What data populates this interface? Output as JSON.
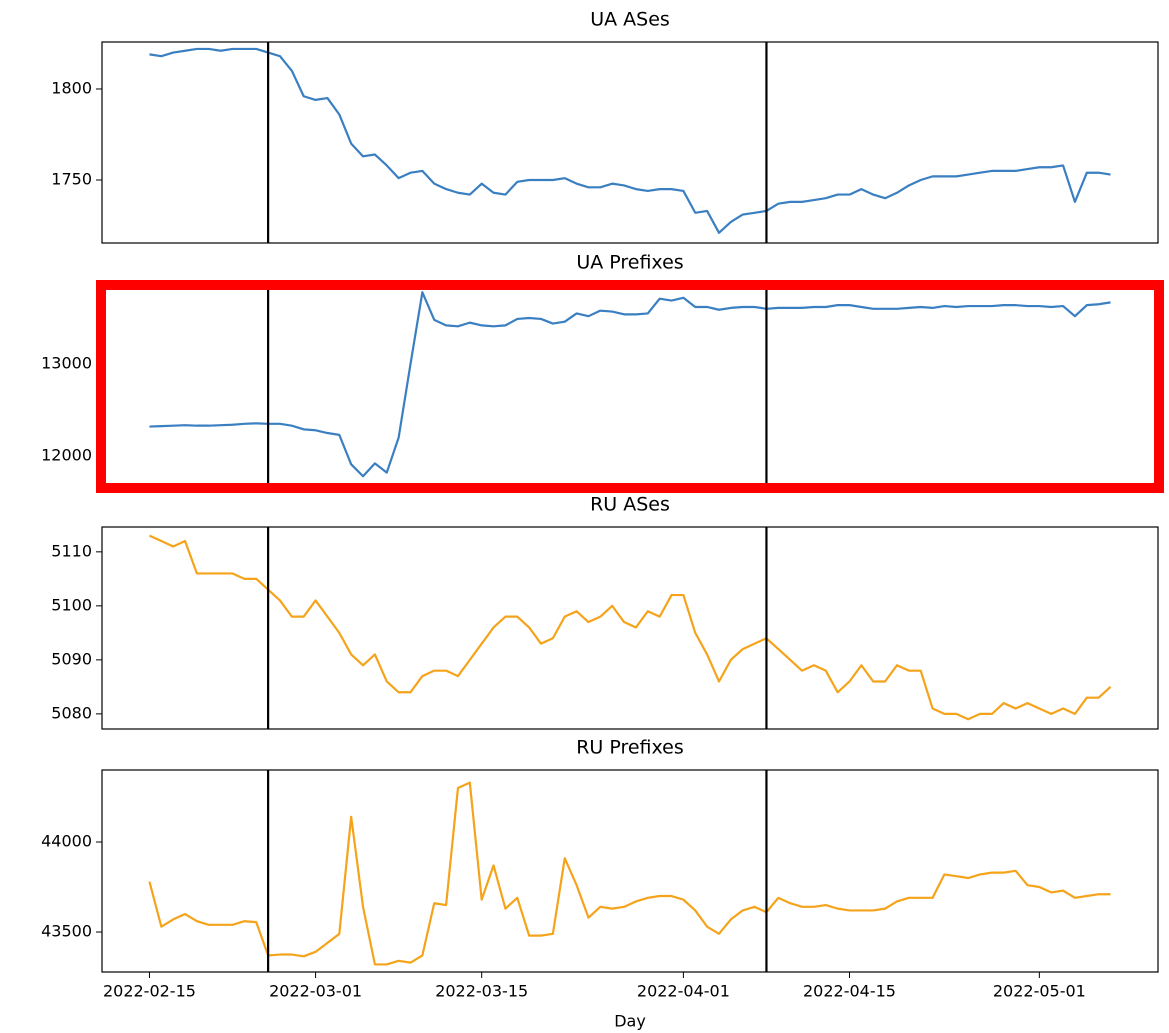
{
  "chart_data": [
    {
      "type": "line",
      "title": "UA ASes",
      "x": [
        "2022-02-15",
        "2022-02-16",
        "2022-02-17",
        "2022-02-18",
        "2022-02-19",
        "2022-02-20",
        "2022-02-21",
        "2022-02-22",
        "2022-02-23",
        "2022-02-24",
        "2022-02-25",
        "2022-02-26",
        "2022-02-27",
        "2022-02-28",
        "2022-03-01",
        "2022-03-02",
        "2022-03-03",
        "2022-03-04",
        "2022-03-05",
        "2022-03-06",
        "2022-03-07",
        "2022-03-08",
        "2022-03-09",
        "2022-03-10",
        "2022-03-11",
        "2022-03-12",
        "2022-03-13",
        "2022-03-14",
        "2022-03-15",
        "2022-03-16",
        "2022-03-17",
        "2022-03-18",
        "2022-03-19",
        "2022-03-20",
        "2022-03-21",
        "2022-03-22",
        "2022-03-23",
        "2022-03-24",
        "2022-03-25",
        "2022-03-26",
        "2022-03-27",
        "2022-03-28",
        "2022-03-29",
        "2022-03-30",
        "2022-03-31",
        "2022-04-01",
        "2022-04-02",
        "2022-04-03",
        "2022-04-04",
        "2022-04-05",
        "2022-04-06",
        "2022-04-07",
        "2022-04-08",
        "2022-04-09",
        "2022-04-10",
        "2022-04-11",
        "2022-04-12",
        "2022-04-13",
        "2022-04-14",
        "2022-04-15",
        "2022-04-16",
        "2022-04-17",
        "2022-04-18",
        "2022-04-19",
        "2022-04-20",
        "2022-04-21",
        "2022-04-22",
        "2022-04-23",
        "2022-04-24",
        "2022-04-25",
        "2022-04-26",
        "2022-04-27",
        "2022-04-28",
        "2022-04-29",
        "2022-04-30",
        "2022-05-01",
        "2022-05-02",
        "2022-05-03",
        "2022-05-04",
        "2022-05-05",
        "2022-05-06",
        "2022-05-07"
      ],
      "values": [
        1819,
        1818,
        1820,
        1821,
        1822,
        1822,
        1821,
        1822,
        1822,
        1822,
        1820,
        1818,
        1810,
        1796,
        1794,
        1795,
        1786,
        1770,
        1763,
        1764,
        1758,
        1751,
        1754,
        1755,
        1748,
        1745,
        1743,
        1742,
        1748,
        1743,
        1742,
        1749,
        1750,
        1750,
        1750,
        1751,
        1748,
        1746,
        1746,
        1748,
        1747,
        1745,
        1744,
        1745,
        1745,
        1744,
        1732,
        1733,
        1721,
        1727,
        1731,
        1732,
        1733,
        1737,
        1738,
        1738,
        1739,
        1740,
        1742,
        1742,
        1745,
        1742,
        1740,
        1743,
        1747,
        1750,
        1752,
        1752,
        1752,
        1753,
        1754,
        1755,
        1755,
        1755,
        1756,
        1757,
        1757,
        1758,
        1738,
        1754,
        1754,
        1753
      ],
      "color": "#3a7fc1",
      "xlim": [
        "2022-02-11",
        "2022-05-11"
      ],
      "ylim": [
        1715.4,
        1825.8
      ],
      "yticks": [
        1750,
        1800
      ],
      "vlines": [
        "2022-02-25",
        "2022-04-08"
      ],
      "vline_color": "#000000"
    },
    {
      "type": "line",
      "title": "UA Prefixes",
      "x": [
        "2022-02-15",
        "2022-02-16",
        "2022-02-17",
        "2022-02-18",
        "2022-02-19",
        "2022-02-20",
        "2022-02-21",
        "2022-02-22",
        "2022-02-23",
        "2022-02-24",
        "2022-02-25",
        "2022-02-26",
        "2022-02-27",
        "2022-02-28",
        "2022-03-01",
        "2022-03-02",
        "2022-03-03",
        "2022-03-04",
        "2022-03-05",
        "2022-03-06",
        "2022-03-07",
        "2022-03-08",
        "2022-03-09",
        "2022-03-10",
        "2022-03-11",
        "2022-03-12",
        "2022-03-13",
        "2022-03-14",
        "2022-03-15",
        "2022-03-16",
        "2022-03-17",
        "2022-03-18",
        "2022-03-19",
        "2022-03-20",
        "2022-03-21",
        "2022-03-22",
        "2022-03-23",
        "2022-03-24",
        "2022-03-25",
        "2022-03-26",
        "2022-03-27",
        "2022-03-28",
        "2022-03-29",
        "2022-03-30",
        "2022-03-31",
        "2022-04-01",
        "2022-04-02",
        "2022-04-03",
        "2022-04-04",
        "2022-04-05",
        "2022-04-06",
        "2022-04-07",
        "2022-04-08",
        "2022-04-09",
        "2022-04-10",
        "2022-04-11",
        "2022-04-12",
        "2022-04-13",
        "2022-04-14",
        "2022-04-15",
        "2022-04-16",
        "2022-04-17",
        "2022-04-18",
        "2022-04-19",
        "2022-04-20",
        "2022-04-21",
        "2022-04-22",
        "2022-04-23",
        "2022-04-24",
        "2022-04-25",
        "2022-04-26",
        "2022-04-27",
        "2022-04-28",
        "2022-04-29",
        "2022-04-30",
        "2022-05-01",
        "2022-05-02",
        "2022-05-03",
        "2022-05-04",
        "2022-05-05",
        "2022-05-06",
        "2022-05-07"
      ],
      "values": [
        12320,
        12325,
        12330,
        12335,
        12330,
        12330,
        12335,
        12340,
        12350,
        12355,
        12350,
        12350,
        12330,
        12290,
        12280,
        12250,
        12230,
        11910,
        11780,
        11920,
        11820,
        12200,
        13000,
        13780,
        13480,
        13420,
        13410,
        13450,
        13420,
        13410,
        13420,
        13490,
        13500,
        13490,
        13440,
        13460,
        13550,
        13520,
        13580,
        13570,
        13540,
        13540,
        13550,
        13710,
        13690,
        13720,
        13620,
        13620,
        13590,
        13610,
        13620,
        13620,
        13600,
        13610,
        13610,
        13610,
        13620,
        13620,
        13640,
        13640,
        13620,
        13600,
        13600,
        13600,
        13610,
        13620,
        13610,
        13630,
        13620,
        13630,
        13630,
        13630,
        13640,
        13640,
        13630,
        13630,
        13620,
        13630,
        13520,
        13640,
        13650,
        13670
      ],
      "color": "#3a7fc1",
      "xlim": [
        "2022-02-11",
        "2022-05-11"
      ],
      "ylim": [
        11685,
        13859
      ],
      "yticks": [
        12000,
        13000
      ],
      "vlines": [
        "2022-02-25",
        "2022-04-08"
      ],
      "vline_color": "#000000"
    },
    {
      "type": "line",
      "title": "RU ASes",
      "x": [
        "2022-02-15",
        "2022-02-16",
        "2022-02-17",
        "2022-02-18",
        "2022-02-19",
        "2022-02-20",
        "2022-02-21",
        "2022-02-22",
        "2022-02-23",
        "2022-02-24",
        "2022-02-25",
        "2022-02-26",
        "2022-02-27",
        "2022-02-28",
        "2022-03-01",
        "2022-03-02",
        "2022-03-03",
        "2022-03-04",
        "2022-03-05",
        "2022-03-06",
        "2022-03-07",
        "2022-03-08",
        "2022-03-09",
        "2022-03-10",
        "2022-03-11",
        "2022-03-12",
        "2022-03-13",
        "2022-03-14",
        "2022-03-15",
        "2022-03-16",
        "2022-03-17",
        "2022-03-18",
        "2022-03-19",
        "2022-03-20",
        "2022-03-21",
        "2022-03-22",
        "2022-03-23",
        "2022-03-24",
        "2022-03-25",
        "2022-03-26",
        "2022-03-27",
        "2022-03-28",
        "2022-03-29",
        "2022-03-30",
        "2022-03-31",
        "2022-04-01",
        "2022-04-02",
        "2022-04-03",
        "2022-04-04",
        "2022-04-05",
        "2022-04-06",
        "2022-04-07",
        "2022-04-08",
        "2022-04-09",
        "2022-04-10",
        "2022-04-11",
        "2022-04-12",
        "2022-04-13",
        "2022-04-14",
        "2022-04-15",
        "2022-04-16",
        "2022-04-17",
        "2022-04-18",
        "2022-04-19",
        "2022-04-20",
        "2022-04-21",
        "2022-04-22",
        "2022-04-23",
        "2022-04-24",
        "2022-04-25",
        "2022-04-26",
        "2022-04-27",
        "2022-04-28",
        "2022-04-29",
        "2022-04-30",
        "2022-05-01",
        "2022-05-02",
        "2022-05-03",
        "2022-05-04",
        "2022-05-05",
        "2022-05-06",
        "2022-05-07"
      ],
      "values": [
        5113,
        5112,
        5111,
        5112,
        5106,
        5106,
        5106,
        5106,
        5105,
        5105,
        5103,
        5101,
        5098,
        5098,
        5101,
        5098,
        5095,
        5091,
        5089,
        5091,
        5086,
        5084,
        5084,
        5087,
        5088,
        5088,
        5087,
        5090,
        5093,
        5096,
        5098,
        5098,
        5096,
        5093,
        5094,
        5098,
        5099,
        5097,
        5098,
        5100,
        5097,
        5096,
        5099,
        5098,
        5102,
        5102,
        5095,
        5091,
        5086,
        5090,
        5092,
        5093,
        5094,
        5092,
        5090,
        5088,
        5089,
        5088,
        5084,
        5086,
        5089,
        5086,
        5086,
        5089,
        5088,
        5088,
        5081,
        5080,
        5080,
        5079,
        5080,
        5080,
        5082,
        5081,
        5082,
        5081,
        5080,
        5081,
        5080,
        5083,
        5083,
        5085
      ],
      "color": "#f5a31a",
      "xlim": [
        "2022-02-11",
        "2022-05-11"
      ],
      "ylim": [
        5077.2,
        5114.6
      ],
      "yticks": [
        5080,
        5090,
        5100,
        5110
      ],
      "vlines": [
        "2022-02-25",
        "2022-04-08"
      ],
      "vline_color": "#000000"
    },
    {
      "type": "line",
      "title": "RU Prefixes",
      "x_label": "Day",
      "x": [
        "2022-02-15",
        "2022-02-16",
        "2022-02-17",
        "2022-02-18",
        "2022-02-19",
        "2022-02-20",
        "2022-02-21",
        "2022-02-22",
        "2022-02-23",
        "2022-02-24",
        "2022-02-25",
        "2022-02-26",
        "2022-02-27",
        "2022-02-28",
        "2022-03-01",
        "2022-03-02",
        "2022-03-03",
        "2022-03-04",
        "2022-03-05",
        "2022-03-06",
        "2022-03-07",
        "2022-03-08",
        "2022-03-09",
        "2022-03-10",
        "2022-03-11",
        "2022-03-12",
        "2022-03-13",
        "2022-03-14",
        "2022-03-15",
        "2022-03-16",
        "2022-03-17",
        "2022-03-18",
        "2022-03-19",
        "2022-03-20",
        "2022-03-21",
        "2022-03-22",
        "2022-03-23",
        "2022-03-24",
        "2022-03-25",
        "2022-03-26",
        "2022-03-27",
        "2022-03-28",
        "2022-03-29",
        "2022-03-30",
        "2022-03-31",
        "2022-04-01",
        "2022-04-02",
        "2022-04-03",
        "2022-04-04",
        "2022-04-05",
        "2022-04-06",
        "2022-04-07",
        "2022-04-08",
        "2022-04-09",
        "2022-04-10",
        "2022-04-11",
        "2022-04-12",
        "2022-04-13",
        "2022-04-14",
        "2022-04-15",
        "2022-04-16",
        "2022-04-17",
        "2022-04-18",
        "2022-04-19",
        "2022-04-20",
        "2022-04-21",
        "2022-04-22",
        "2022-04-23",
        "2022-04-24",
        "2022-04-25",
        "2022-04-26",
        "2022-04-27",
        "2022-04-28",
        "2022-04-29",
        "2022-04-30",
        "2022-05-01",
        "2022-05-02",
        "2022-05-03",
        "2022-05-04",
        "2022-05-05",
        "2022-05-06",
        "2022-05-07"
      ],
      "values": [
        43780,
        43530,
        43570,
        43600,
        43560,
        43540,
        43540,
        43540,
        43560,
        43555,
        43370,
        43375,
        43375,
        43365,
        43390,
        43440,
        43490,
        44140,
        43640,
        43320,
        43320,
        43340,
        43330,
        43370,
        43660,
        43650,
        44300,
        44330,
        43680,
        43870,
        43630,
        43690,
        43480,
        43480,
        43490,
        43910,
        43760,
        43580,
        43640,
        43630,
        43640,
        43670,
        43690,
        43700,
        43700,
        43680,
        43620,
        43530,
        43490,
        43570,
        43620,
        43640,
        43610,
        43690,
        43660,
        43640,
        43640,
        43650,
        43630,
        43620,
        43620,
        43620,
        43630,
        43670,
        43690,
        43690,
        43690,
        43820,
        43810,
        43800,
        43820,
        43830,
        43830,
        43840,
        43760,
        43750,
        43720,
        43730,
        43690,
        43700,
        43710,
        43710
      ],
      "color": "#f5a31a",
      "xlim": [
        "2022-02-11",
        "2022-05-11"
      ],
      "ylim": [
        43278,
        44400
      ],
      "yticks": [
        43500,
        44000
      ],
      "xticks": [
        "2022-02-15",
        "2022-03-01",
        "2022-03-15",
        "2022-04-01",
        "2022-04-15",
        "2022-05-01"
      ],
      "vlines": [
        "2022-02-25",
        "2022-04-08"
      ],
      "vline_color": "#000000"
    }
  ]
}
